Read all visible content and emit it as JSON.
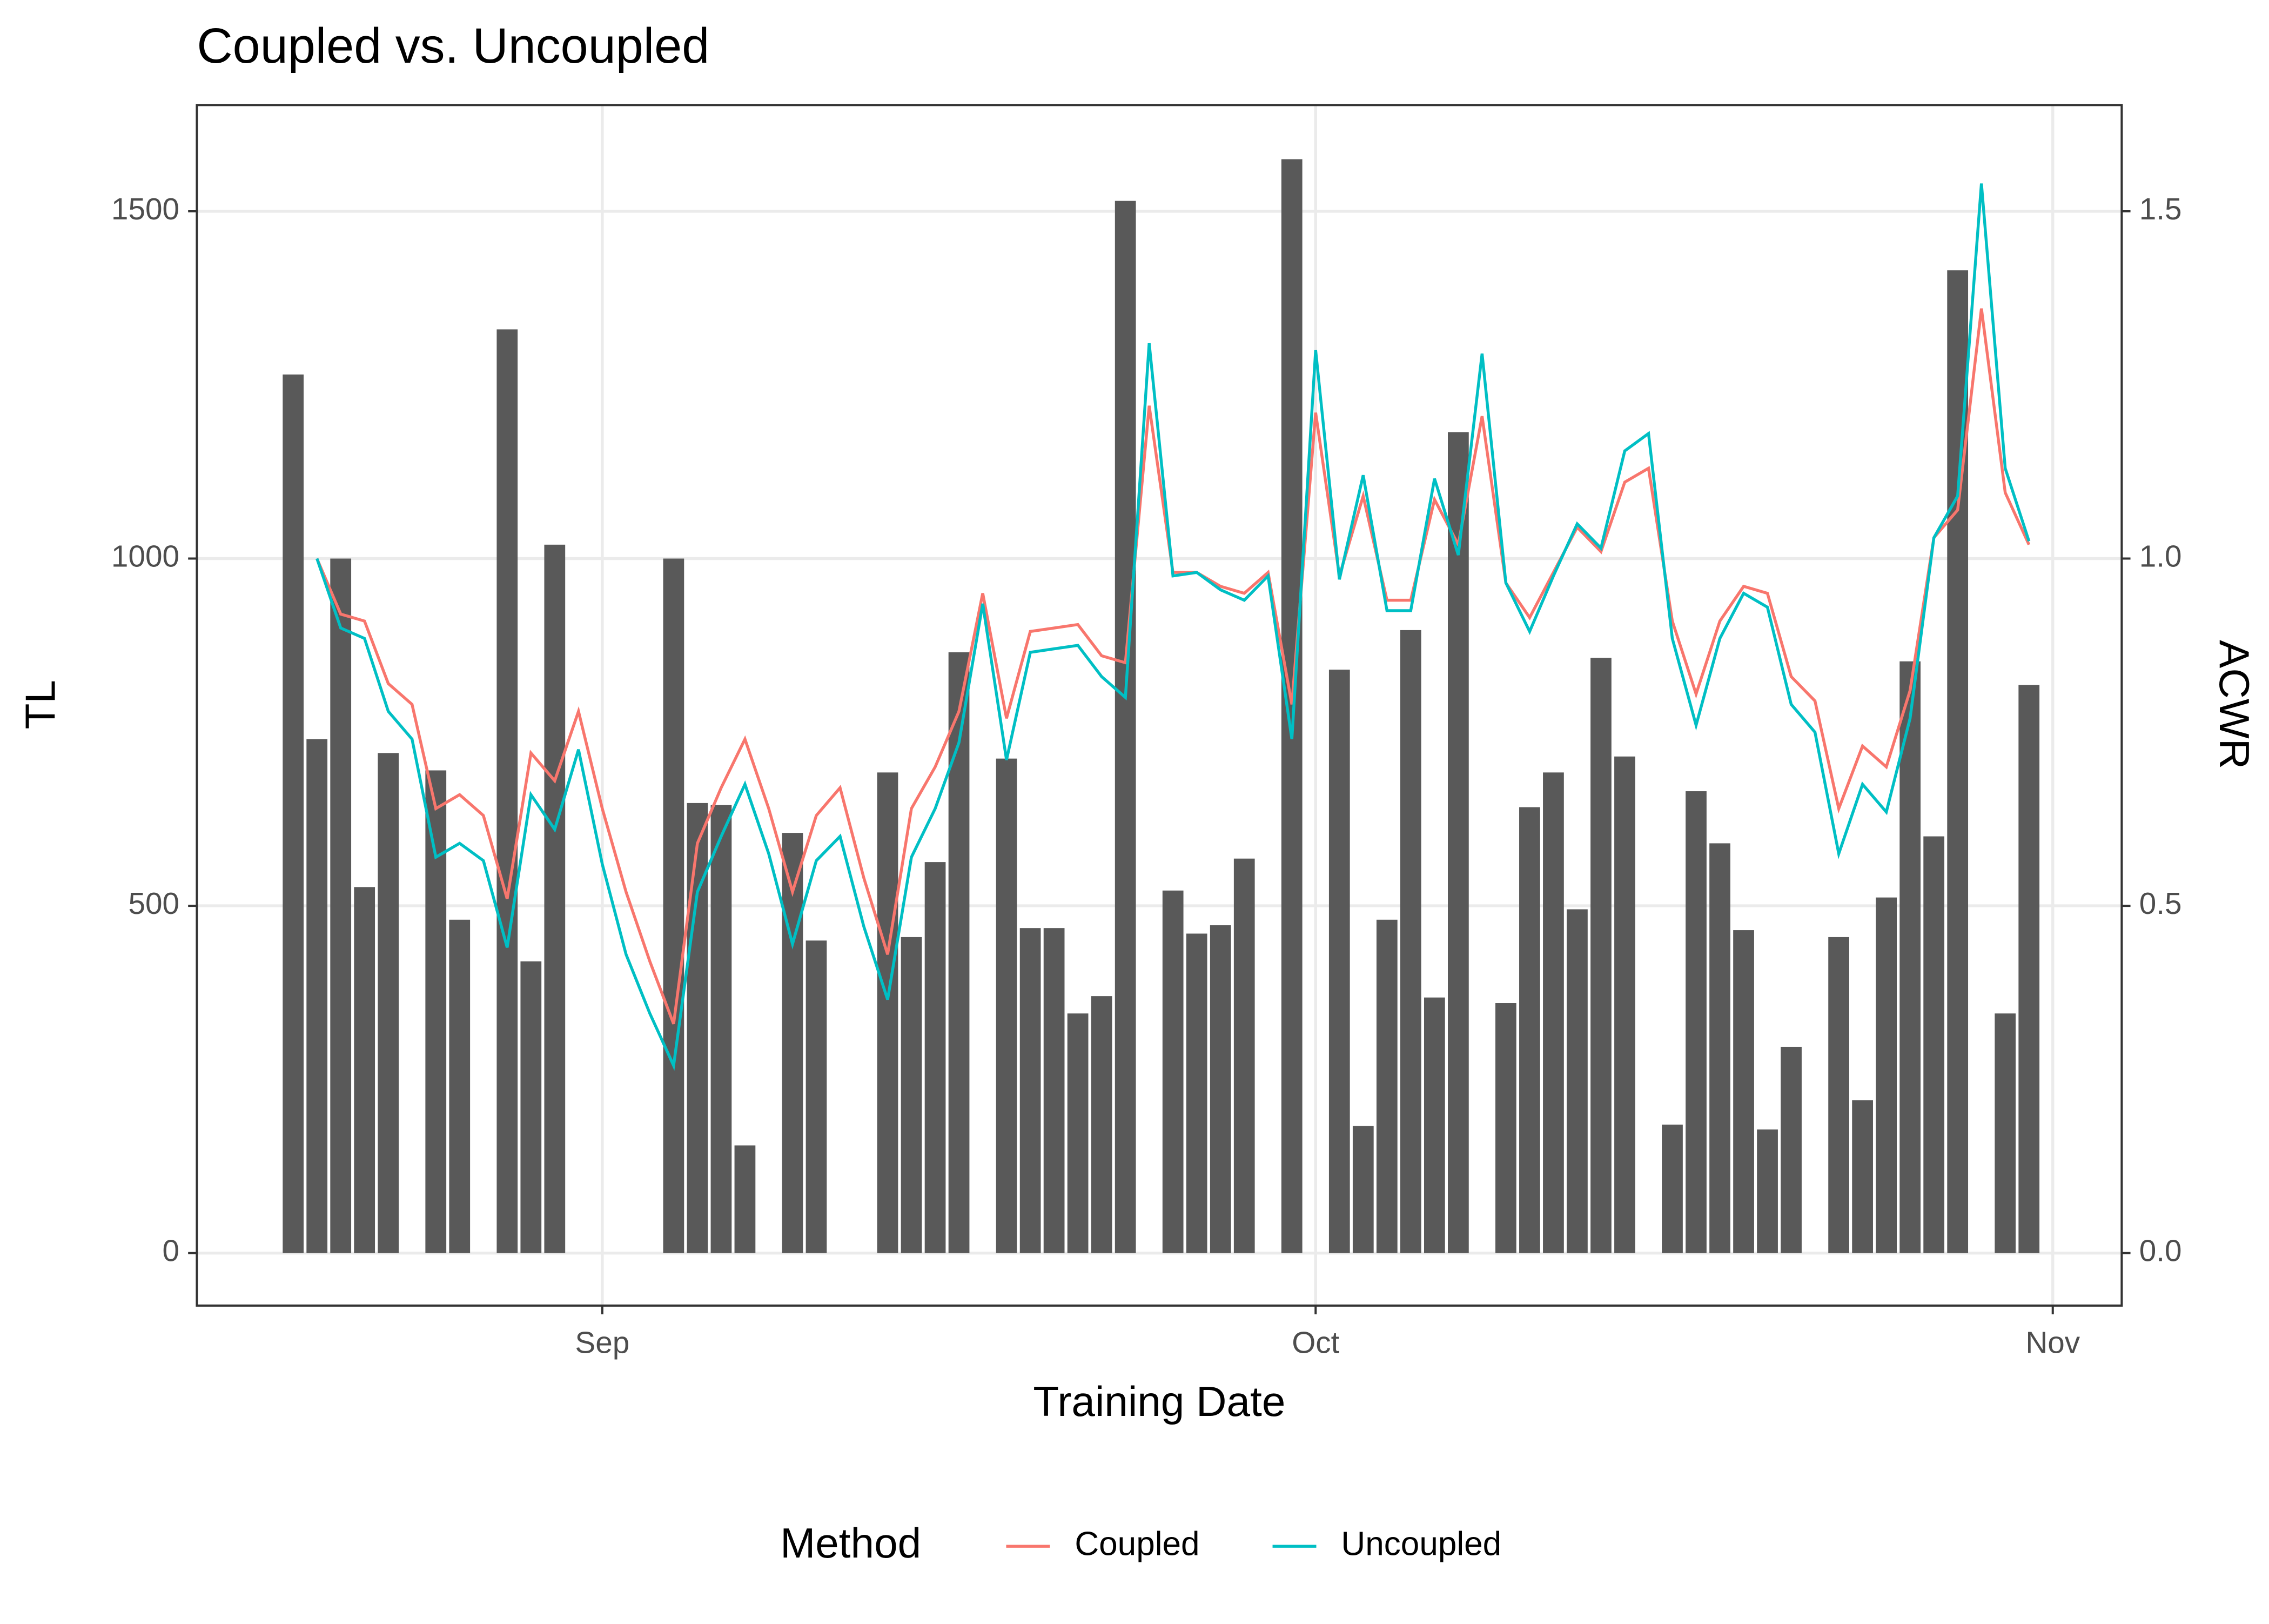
{
  "chart_data": {
    "type": "bar_line",
    "title": "Coupled vs. Uncoupled",
    "xlabel": "Training Date",
    "ylabel": "TL",
    "y2label": "ACWR",
    "legend_title": "Method",
    "legend": "bottom",
    "grid": true,
    "x": [
      231,
      232,
      233,
      234,
      235,
      236,
      237,
      238,
      239,
      240,
      241,
      242,
      243,
      244,
      245,
      246,
      247,
      248,
      249,
      250,
      251,
      252,
      253,
      254,
      255,
      256,
      257,
      258,
      259,
      260,
      261,
      262,
      263,
      264,
      265,
      266,
      267,
      268,
      269,
      270,
      271,
      272,
      273,
      274,
      275,
      276,
      277,
      278,
      279,
      280,
      281,
      282,
      283,
      284,
      285,
      286,
      287,
      288,
      289,
      290,
      291,
      292,
      293,
      294,
      295,
      296,
      297,
      298,
      299,
      300,
      301,
      302,
      303,
      304
    ],
    "xlim": [
      226.95,
      307.9
    ],
    "xticks": [
      {
        "value": 244,
        "label": "Sep"
      },
      {
        "value": 274,
        "label": "Oct"
      },
      {
        "value": 305,
        "label": "Nov"
      }
    ],
    "ylim": [
      -75.6,
      1653
    ],
    "yticks": [
      0,
      500,
      1000,
      1500
    ],
    "y2lim": [
      -0.0756,
      1.653
    ],
    "y2ticks": [
      {
        "value": 0,
        "label": "0.0"
      },
      {
        "value": 0.5,
        "label": "0.5"
      },
      {
        "value": 1,
        "label": "1.0"
      },
      {
        "value": 1.5,
        "label": "1.5"
      }
    ],
    "bars": {
      "color": "#595959",
      "values": [
        1265,
        740,
        1000,
        527,
        720,
        null,
        695,
        480,
        null,
        1330,
        420,
        1020,
        null,
        null,
        null,
        null,
        1000,
        648,
        645,
        155,
        null,
        605,
        450,
        null,
        null,
        692,
        455,
        563,
        865,
        null,
        712,
        468,
        468,
        345,
        370,
        1515,
        null,
        522,
        460,
        472,
        568,
        null,
        1575,
        null,
        840,
        183,
        480,
        897,
        368,
        1182,
        null,
        360,
        642,
        692,
        495,
        857,
        715,
        null,
        185,
        665,
        590,
        465,
        178,
        297,
        null,
        455,
        220,
        512,
        852,
        600,
        1415,
        null,
        345,
        818
      ]
    },
    "series": [
      {
        "name": "Coupled",
        "color": "#F8766D",
        "axis": "y2",
        "values": [
          null,
          1.0,
          0.92,
          0.91,
          0.82,
          0.79,
          0.64,
          0.66,
          0.63,
          0.51,
          0.72,
          0.68,
          0.78,
          0.64,
          0.52,
          0.42,
          0.33,
          0.59,
          0.67,
          0.74,
          0.64,
          0.52,
          0.63,
          0.67,
          0.54,
          0.43,
          0.64,
          0.7,
          0.78,
          0.95,
          0.77,
          0.895,
          0.9,
          0.905,
          0.86,
          0.85,
          1.22,
          0.98,
          0.98,
          0.96,
          0.95,
          0.98,
          0.79,
          1.21,
          0.975,
          1.09,
          0.94,
          0.94,
          1.085,
          1.02,
          1.205,
          0.965,
          0.915,
          0.98,
          1.045,
          1.01,
          1.11,
          1.13,
          0.91,
          0.805,
          0.91,
          0.96,
          0.95,
          0.83,
          0.795,
          0.64,
          0.73,
          0.7,
          0.81,
          1.03,
          1.07,
          1.36,
          1.095,
          1.02
        ]
      },
      {
        "name": "Uncoupled",
        "color": "#00BFC4",
        "axis": "y2",
        "values": [
          null,
          1.0,
          0.9,
          0.885,
          0.78,
          0.74,
          0.57,
          0.59,
          0.565,
          0.44,
          0.66,
          0.61,
          0.725,
          0.56,
          0.43,
          0.345,
          0.27,
          0.52,
          0.6,
          0.675,
          0.575,
          0.445,
          0.565,
          0.6,
          0.47,
          0.365,
          0.57,
          0.64,
          0.735,
          0.935,
          0.71,
          0.865,
          0.87,
          0.875,
          0.83,
          0.8,
          1.31,
          0.975,
          0.98,
          0.955,
          0.94,
          0.975,
          0.74,
          1.3,
          0.97,
          1.12,
          0.925,
          0.925,
          1.115,
          1.005,
          1.295,
          0.965,
          0.895,
          0.975,
          1.05,
          1.015,
          1.155,
          1.18,
          0.885,
          0.76,
          0.885,
          0.95,
          0.93,
          0.79,
          0.75,
          0.575,
          0.675,
          0.635,
          0.77,
          1.03,
          1.09,
          1.54,
          1.13,
          1.025
        ]
      }
    ]
  }
}
